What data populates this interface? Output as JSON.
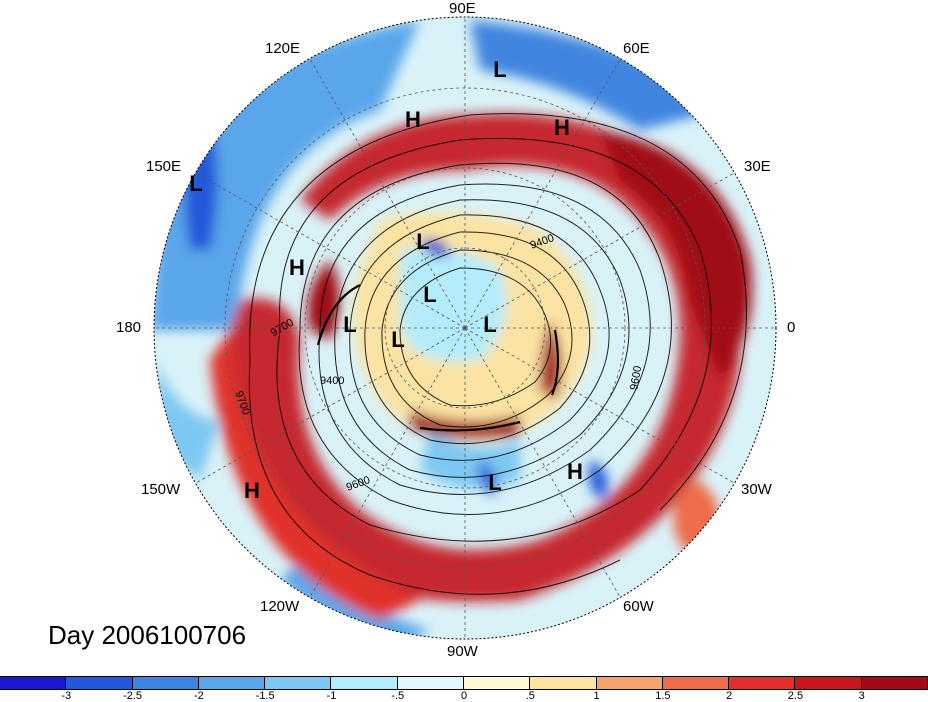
{
  "title": "Day 2006100706",
  "longitude_labels": [
    {
      "id": "lon-90e",
      "text": "90E"
    },
    {
      "id": "lon-60e",
      "text": "60E"
    },
    {
      "id": "lon-120e",
      "text": "120E"
    },
    {
      "id": "lon-30e",
      "text": "30E"
    },
    {
      "id": "lon-150e",
      "text": "150E"
    },
    {
      "id": "lon-180",
      "text": "180"
    },
    {
      "id": "lon-0",
      "text": "0"
    },
    {
      "id": "lon-150w",
      "text": "150W"
    },
    {
      "id": "lon-30w",
      "text": "30W"
    },
    {
      "id": "lon-120w",
      "text": "120W"
    },
    {
      "id": "lon-60w",
      "text": "60W"
    },
    {
      "id": "lon-90w",
      "text": "90W"
    }
  ],
  "contour_labels": [
    "9400",
    "9700",
    "9700",
    "9400",
    "9600",
    "9600"
  ],
  "pressure_centers": [
    {
      "text": "L",
      "lon": "~65E",
      "lat": "~45N"
    },
    {
      "text": "H",
      "lon": "~105E",
      "lat": "~55N"
    },
    {
      "text": "H",
      "lon": "~60E",
      "lat": "~55N"
    },
    {
      "text": "L",
      "lon": "~150E",
      "lat": "~35N"
    },
    {
      "text": "L",
      "lon": "~135E",
      "lat": "~70N"
    },
    {
      "text": "H",
      "lon": "~165E",
      "lat": "~50N"
    },
    {
      "text": "L",
      "lon": "~165E",
      "lat": "~75N"
    },
    {
      "text": "L",
      "lon": "~175E",
      "lat": "~65N"
    },
    {
      "text": "L",
      "lon": "~170W",
      "lat": "~75N"
    },
    {
      "text": "L",
      "lon": "~0",
      "lat": "~80N"
    },
    {
      "text": "L",
      "lon": "~70W",
      "lat": "~55N"
    },
    {
      "text": "H",
      "lon": "~45W",
      "lat": "~50N"
    },
    {
      "text": "H",
      "lon": "~150W",
      "lat": "~35N"
    }
  ],
  "colorbar": {
    "tick_labels": [
      "-3",
      "-2.5",
      "-2",
      "-1.5",
      "-1",
      "-.5",
      "0",
      ".5",
      "1",
      "1.5",
      "2",
      "2.5",
      "3"
    ],
    "colors": [
      "#1a1acc",
      "#2458d9",
      "#3f85e0",
      "#5aa6ea",
      "#7dc8f2",
      "#b4ecfb",
      "#e4f8fc",
      "#fff8d6",
      "#fbe3a3",
      "#f5a36d",
      "#ee6c4a",
      "#e0302c",
      "#c4181f",
      "#a10a17"
    ]
  }
}
